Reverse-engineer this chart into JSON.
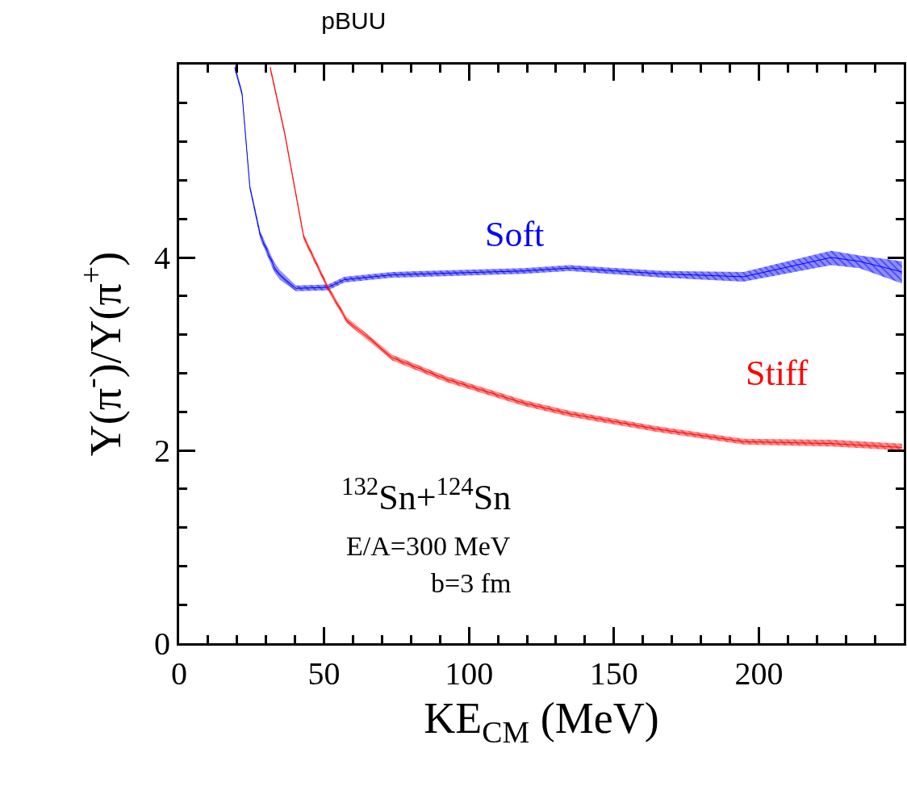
{
  "chart_data": {
    "type": "line",
    "title": "pBUU",
    "xlabel": "KE$_{CM}$ (MeV)",
    "ylabel": "Y(π$^{-}$)/Y(π$^{+}$)",
    "series": [
      {
        "name": "Soft",
        "color": "#0000ff",
        "x": [
          19.2,
          21.7,
          24.4,
          28,
          32.8,
          34.7,
          40.3,
          51.4,
          57,
          73.6,
          118.9,
          134.7,
          167,
          194.7,
          225,
          234.7,
          249.4
        ],
        "values": [
          5.97,
          5.7,
          4.73,
          4.23,
          3.9,
          3.82,
          3.68,
          3.69,
          3.77,
          3.82,
          3.86,
          3.89,
          3.83,
          3.8,
          4.0,
          3.96,
          3.85
        ],
        "lower": [
          5.94,
          5.67,
          4.7,
          4.19,
          3.85,
          3.77,
          3.65,
          3.66,
          3.74,
          3.79,
          3.83,
          3.86,
          3.79,
          3.75,
          3.92,
          3.89,
          3.73
        ],
        "upper": [
          6.0,
          5.73,
          4.76,
          4.27,
          3.95,
          3.87,
          3.71,
          3.72,
          3.8,
          3.85,
          3.89,
          3.92,
          3.86,
          3.85,
          4.07,
          4.02,
          3.96
        ]
      },
      {
        "name": "Stiff",
        "color": "#ff0000",
        "x": [
          31.4,
          36.4,
          43,
          51.4,
          57.8,
          73.6,
          92,
          118.9,
          134.7,
          165,
          194.7,
          225,
          249.4
        ],
        "values": [
          5.97,
          5.29,
          4.21,
          3.68,
          3.35,
          2.96,
          2.74,
          2.49,
          2.38,
          2.22,
          2.09,
          2.07,
          2.03
        ],
        "lower": [
          5.94,
          5.26,
          4.18,
          3.65,
          3.32,
          2.93,
          2.71,
          2.46,
          2.35,
          2.19,
          2.06,
          2.04,
          2.0
        ],
        "upper": [
          6.0,
          5.32,
          4.24,
          3.71,
          3.38,
          2.99,
          2.77,
          2.52,
          2.41,
          2.25,
          2.12,
          2.11,
          2.07
        ]
      }
    ],
    "xlim": [
      0,
      250
    ],
    "ylim": [
      0,
      6
    ],
    "xticks": [
      0,
      {
        "value": 10,
        "label": null
      },
      {
        "value": 20,
        "label": null
      },
      {
        "value": 30,
        "label": null
      },
      {
        "value": 40,
        "label": null
      },
      50,
      {
        "value": 60,
        "label": null
      },
      {
        "value": 70,
        "label": null
      },
      {
        "value": 80,
        "label": null
      },
      {
        "value": 90,
        "label": null
      },
      100,
      {
        "value": 110,
        "label": null
      },
      {
        "value": 120,
        "label": null
      },
      {
        "value": 130,
        "label": null
      },
      {
        "value": 140,
        "label": null
      },
      150,
      {
        "value": 160,
        "label": null
      },
      {
        "value": 170,
        "label": null
      },
      {
        "value": 180,
        "label": null
      },
      {
        "value": 190,
        "label": null
      },
      200,
      {
        "value": 210,
        "label": null
      },
      {
        "value": 220,
        "label": null
      },
      {
        "value": 230,
        "label": null
      },
      {
        "value": 240,
        "label": null
      }
    ],
    "yticks": [
      0,
      {
        "value": 0.4,
        "label": null
      },
      {
        "value": 0.8,
        "label": null
      },
      {
        "value": 1.2,
        "label": null
      },
      {
        "value": 1.6,
        "label": null
      },
      2,
      {
        "value": 2.4,
        "label": null
      },
      {
        "value": 2.8,
        "label": null
      },
      {
        "value": 3.2,
        "label": null
      },
      {
        "value": 3.6,
        "label": null
      },
      4,
      {
        "value": 4.4,
        "label": null
      },
      {
        "value": 4.8,
        "label": null
      },
      {
        "value": 5.2,
        "label": null
      },
      {
        "value": 5.6,
        "label": null
      }
    ],
    "annotations": [
      "$^{132}$Sn+$^{124}$Sn",
      "E/A=300 MeV",
      "b=3 fm"
    ],
    "legend": false,
    "marker": "none",
    "line_style": "solid"
  }
}
